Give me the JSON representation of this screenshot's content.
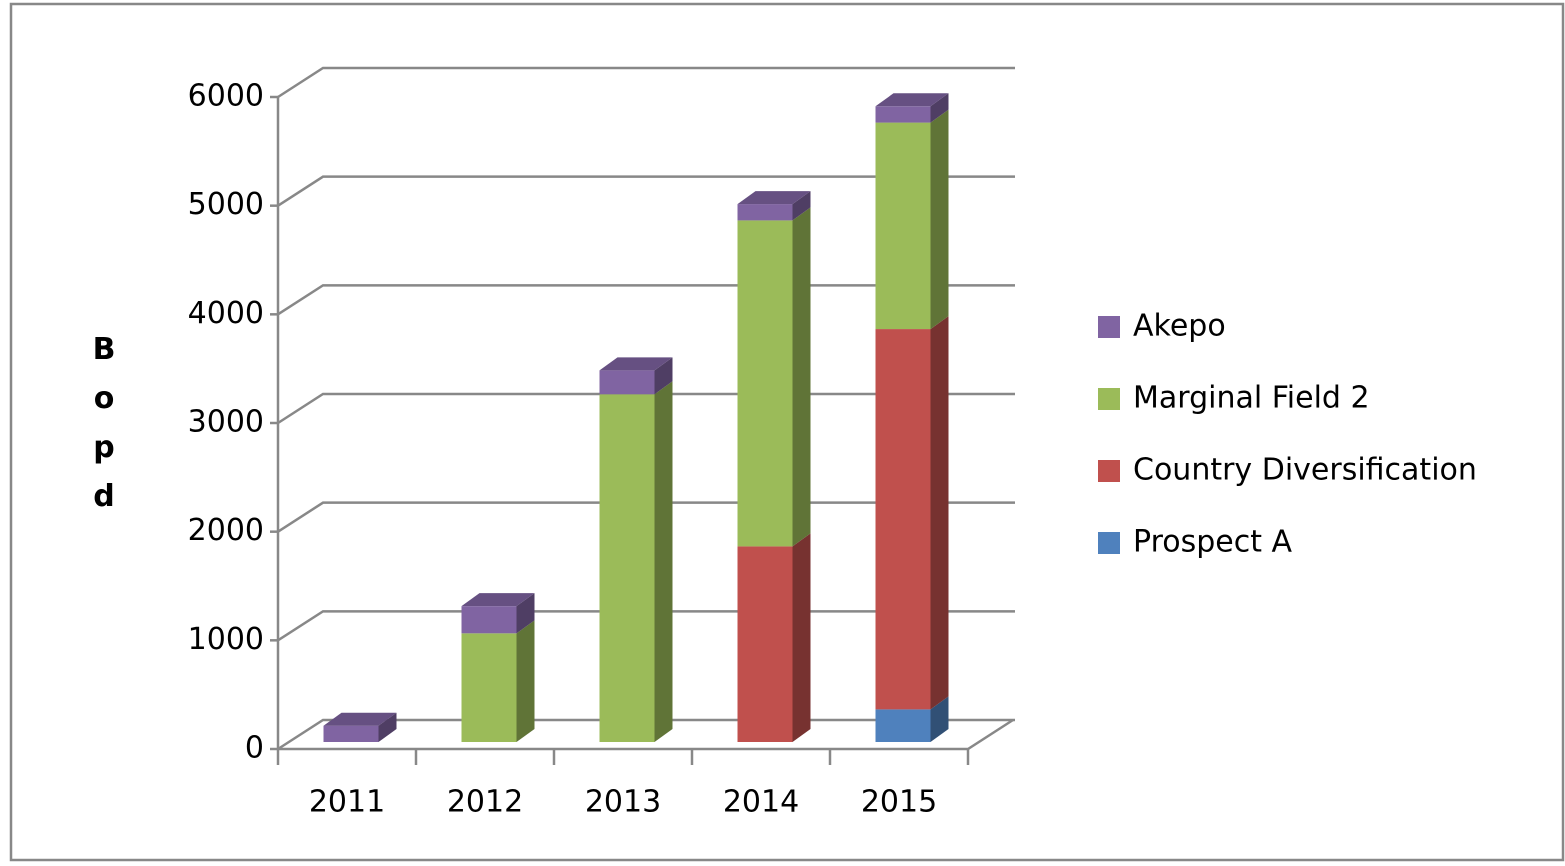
{
  "chart_data": {
    "type": "bar3d_stacked",
    "y_label": "Bopd",
    "categories": [
      "2011",
      "2012",
      "2013",
      "2014",
      "2015"
    ],
    "series": [
      {
        "name": "Prospect A",
        "color": "#4f81bd",
        "values": [
          0,
          0,
          0,
          0,
          300
        ]
      },
      {
        "name": "Country Diversification",
        "color": "#c0504d",
        "values": [
          0,
          0,
          0,
          1800,
          3500
        ]
      },
      {
        "name": "Marginal Field 2",
        "color": "#9bbb59",
        "values": [
          0,
          1000,
          3200,
          3000,
          1900
        ]
      },
      {
        "name": "Akepo",
        "color": "#8064a2",
        "values": [
          150,
          250,
          220,
          150,
          150
        ]
      }
    ],
    "ylim": [
      0,
      6000
    ],
    "yticks": [
      0,
      1000,
      2000,
      3000,
      4000,
      5000,
      6000
    ],
    "grid": true,
    "legend": "right"
  }
}
